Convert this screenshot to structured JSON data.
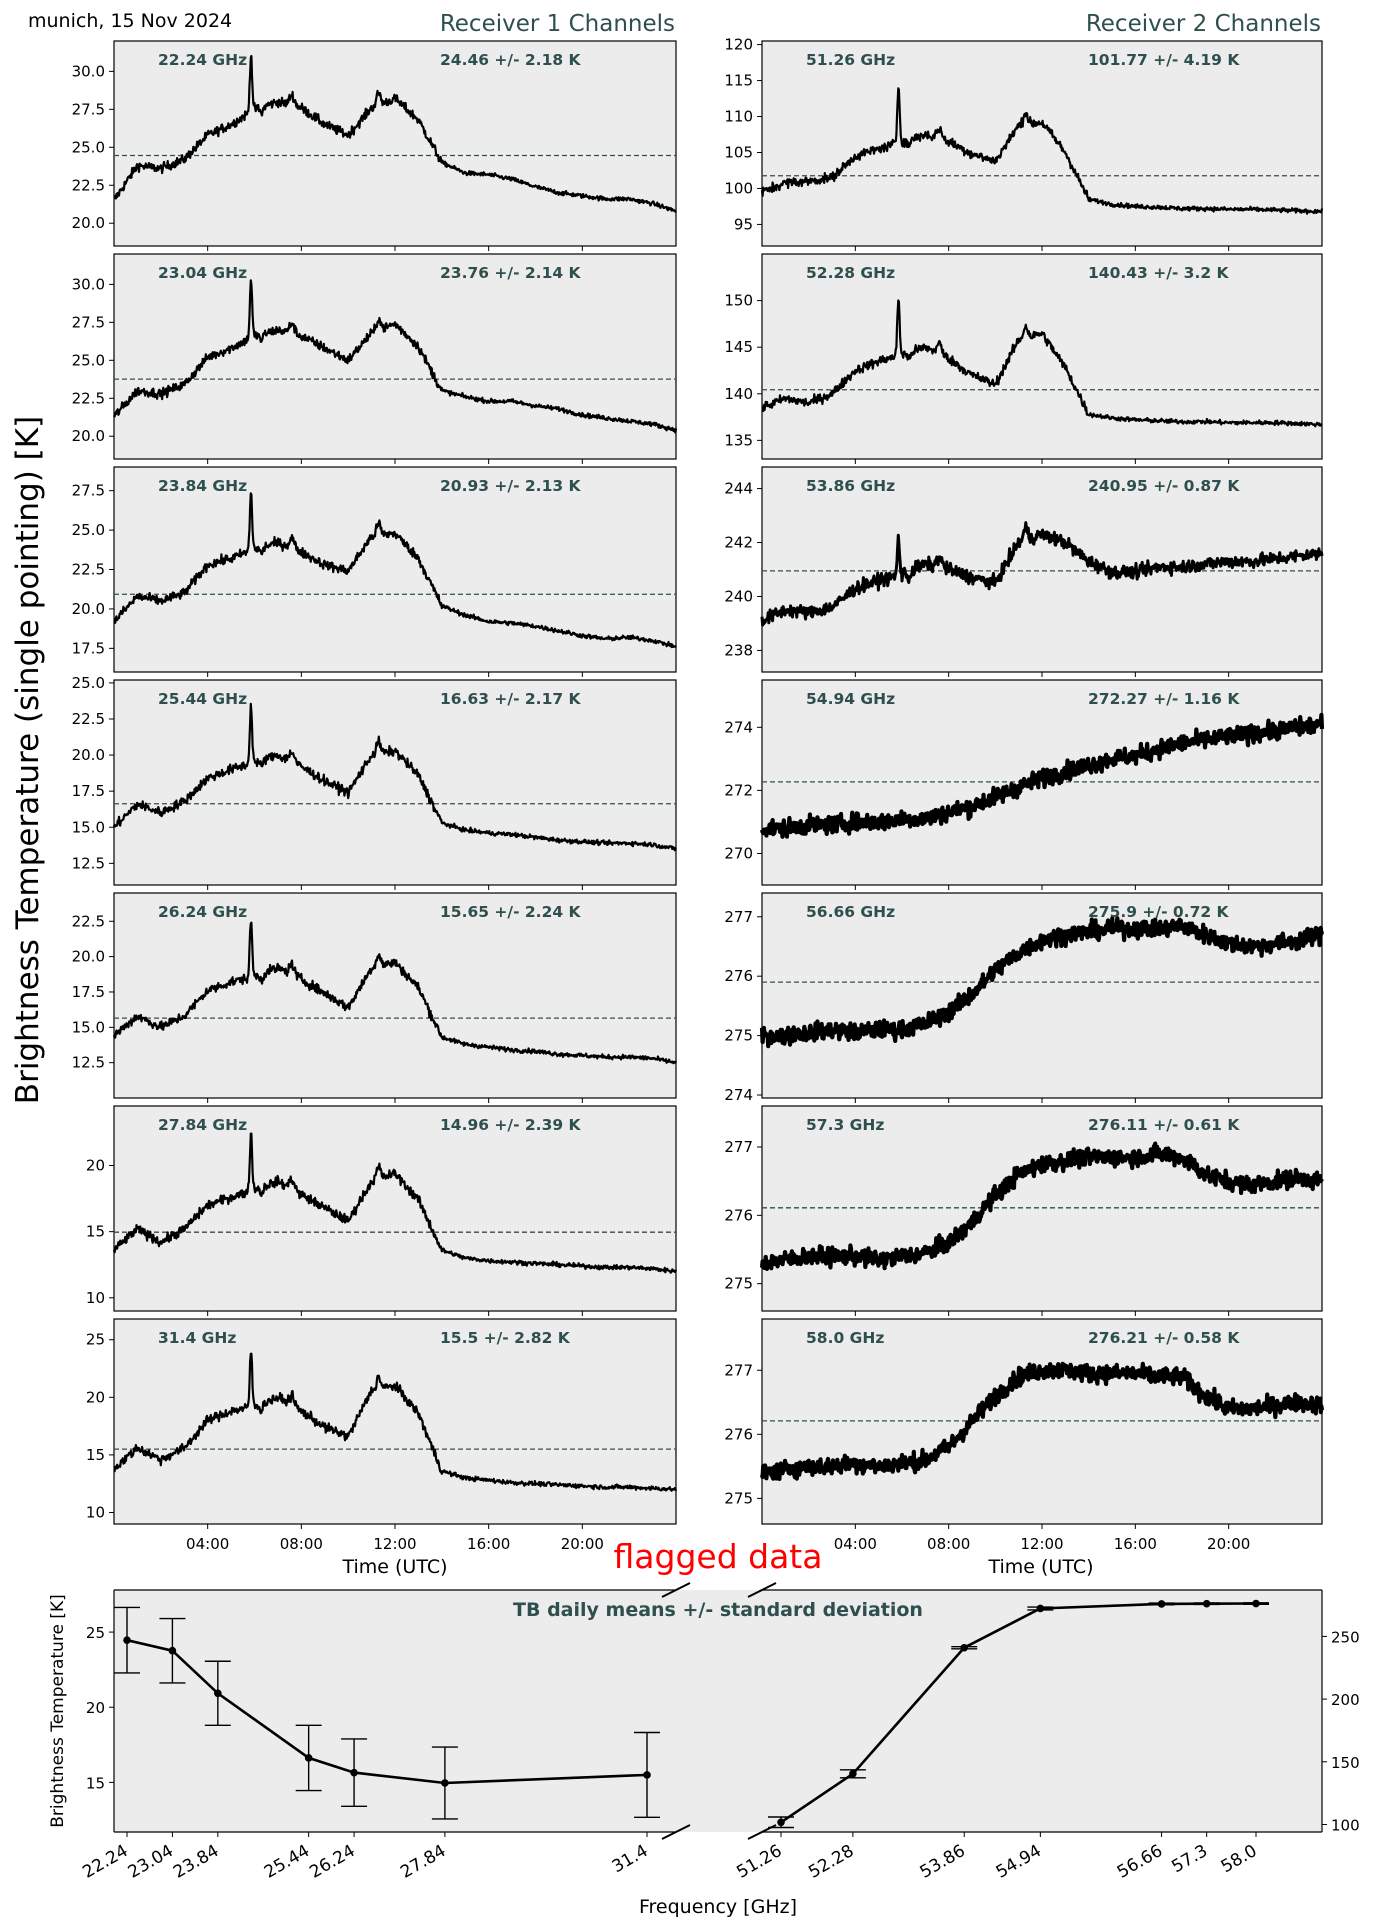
{
  "header": {
    "location_date": "munich, 15 Nov 2024",
    "receiver1_title": "Receiver 1 Channels",
    "receiver2_title": "Receiver 2 Channels"
  },
  "y_axis_label": "Brightness Temperature (single pointing) [K]",
  "x_axis_label": "Time (UTC)",
  "x_ticks": [
    "04:00",
    "08:00",
    "12:00",
    "16:00",
    "20:00"
  ],
  "flag_text": "flagged data",
  "colors": {
    "panel_bg": "#ececec",
    "trace": "#000000",
    "annotation": "#2f4f4f",
    "flag": "#ff0000"
  },
  "chart_data": [
    {
      "type": "line",
      "panel": "receiver1-ch1",
      "freq_label": "22.24 GHz",
      "stats": "24.46 +/- 2.18 K",
      "mean": 24.46,
      "ylim": [
        18.5,
        32.0
      ],
      "yticks": [
        "20.0",
        "22.5",
        "25.0",
        "27.5",
        "30.0"
      ],
      "ytick_values": [
        20.0,
        22.5,
        25.0,
        27.5,
        30.0
      ],
      "shape": "humidity",
      "x": [
        0,
        1,
        2,
        3,
        4,
        5,
        6,
        7,
        8,
        9,
        10,
        11,
        12,
        13,
        14,
        15,
        16,
        17,
        18,
        19,
        20,
        21,
        22,
        23,
        24
      ],
      "values": [
        21.5,
        23.8,
        23.6,
        24.2,
        25.8,
        26.5,
        27.5,
        28.0,
        27.6,
        26.5,
        25.8,
        27.6,
        28.2,
        26.8,
        24.0,
        23.3,
        23.2,
        22.9,
        22.4,
        22.0,
        21.8,
        21.6,
        21.6,
        21.3,
        20.8
      ]
    },
    {
      "type": "line",
      "panel": "receiver1-ch2",
      "freq_label": "23.04 GHz",
      "stats": "23.76 +/- 2.14 K",
      "mean": 23.76,
      "ylim": [
        18.5,
        32.0
      ],
      "yticks": [
        "20.0",
        "22.5",
        "25.0",
        "27.5",
        "30.0"
      ],
      "ytick_values": [
        20.0,
        22.5,
        25.0,
        27.5,
        30.0
      ],
      "shape": "humidity",
      "x": [
        0,
        1,
        2,
        3,
        4,
        5,
        6,
        7,
        8,
        9,
        10,
        11,
        12,
        13,
        14,
        15,
        16,
        17,
        18,
        19,
        20,
        21,
        22,
        23,
        24
      ],
      "values": [
        21.3,
        23.0,
        22.8,
        23.4,
        25.2,
        25.8,
        26.6,
        27.0,
        26.6,
        25.8,
        25.0,
        26.8,
        27.4,
        25.9,
        23.0,
        22.6,
        22.3,
        22.3,
        22.0,
        21.8,
        21.4,
        21.2,
        21.0,
        20.8,
        20.4
      ]
    },
    {
      "type": "line",
      "panel": "receiver1-ch3",
      "freq_label": "23.84 GHz",
      "stats": "20.93 +/- 2.13 K",
      "mean": 20.93,
      "ylim": [
        16.0,
        29.0
      ],
      "yticks": [
        "17.5",
        "20.0",
        "22.5",
        "25.0",
        "27.5"
      ],
      "ytick_values": [
        17.5,
        20.0,
        22.5,
        25.0,
        27.5
      ],
      "shape": "humidity",
      "x": [
        0,
        1,
        2,
        3,
        4,
        5,
        6,
        7,
        8,
        9,
        10,
        11,
        12,
        13,
        14,
        15,
        16,
        17,
        18,
        19,
        20,
        21,
        22,
        23,
        24
      ],
      "values": [
        19.2,
        20.8,
        20.5,
        21.0,
        22.8,
        23.2,
        23.8,
        24.2,
        23.6,
        22.8,
        22.4,
        24.6,
        24.8,
        23.2,
        20.2,
        19.6,
        19.2,
        19.1,
        18.9,
        18.6,
        18.3,
        18.1,
        18.2,
        18.0,
        17.6
      ]
    },
    {
      "type": "line",
      "panel": "receiver1-ch4",
      "freq_label": "25.44 GHz",
      "stats": "16.63 +/- 2.17 K",
      "mean": 16.63,
      "ylim": [
        11.0,
        25.2
      ],
      "yticks": [
        "12.5",
        "15.0",
        "17.5",
        "20.0",
        "22.5",
        "25.0"
      ],
      "ytick_values": [
        12.5,
        15.0,
        17.5,
        20.0,
        22.5,
        25.0
      ],
      "shape": "humidity",
      "x": [
        0,
        1,
        2,
        3,
        4,
        5,
        6,
        7,
        8,
        9,
        10,
        11,
        12,
        13,
        14,
        15,
        16,
        17,
        18,
        19,
        20,
        21,
        22,
        23,
        24
      ],
      "values": [
        15.0,
        16.6,
        16.0,
        16.8,
        18.4,
        19.0,
        19.5,
        20.0,
        19.2,
        18.2,
        17.4,
        20.0,
        20.3,
        18.6,
        15.3,
        14.8,
        14.6,
        14.5,
        14.3,
        14.1,
        14.0,
        13.9,
        13.9,
        13.8,
        13.5
      ]
    },
    {
      "type": "line",
      "panel": "receiver1-ch5",
      "freq_label": "26.24 GHz",
      "stats": "15.65 +/- 2.24 K",
      "mean": 15.65,
      "ylim": [
        10.0,
        24.5
      ],
      "yticks": [
        "12.5",
        "15.0",
        "17.5",
        "20.0",
        "22.5"
      ],
      "ytick_values": [
        12.5,
        15.0,
        17.5,
        20.0,
        22.5
      ],
      "shape": "humidity",
      "x": [
        0,
        1,
        2,
        3,
        4,
        5,
        6,
        7,
        8,
        9,
        10,
        11,
        12,
        13,
        14,
        15,
        16,
        17,
        18,
        19,
        20,
        21,
        22,
        23,
        24
      ],
      "values": [
        14.4,
        15.8,
        15.0,
        15.8,
        17.6,
        18.2,
        18.6,
        19.2,
        18.4,
        17.4,
        16.4,
        19.2,
        19.6,
        17.8,
        14.3,
        13.8,
        13.6,
        13.4,
        13.3,
        13.1,
        13.0,
        12.9,
        12.9,
        12.8,
        12.5
      ]
    },
    {
      "type": "line",
      "panel": "receiver1-ch6",
      "freq_label": "27.84 GHz",
      "stats": "14.96 +/- 2.39 K",
      "mean": 14.96,
      "ylim": [
        9.0,
        24.5
      ],
      "yticks": [
        "10",
        "15",
        "20"
      ],
      "ytick_values": [
        10,
        15,
        20
      ],
      "shape": "humidity",
      "x": [
        0,
        1,
        2,
        3,
        4,
        5,
        6,
        7,
        8,
        9,
        10,
        11,
        12,
        13,
        14,
        15,
        16,
        17,
        18,
        19,
        20,
        21,
        22,
        23,
        24
      ],
      "values": [
        13.6,
        15.2,
        14.2,
        15.2,
        17.0,
        17.6,
        18.2,
        18.8,
        17.8,
        16.8,
        15.8,
        18.8,
        19.4,
        17.4,
        13.6,
        13.0,
        12.8,
        12.7,
        12.6,
        12.5,
        12.4,
        12.3,
        12.3,
        12.2,
        12.0
      ]
    },
    {
      "type": "line",
      "panel": "receiver1-ch7",
      "freq_label": "31.4 GHz",
      "stats": "15.5 +/- 2.82 K",
      "mean": 15.5,
      "ylim": [
        9.0,
        26.8
      ],
      "yticks": [
        "10",
        "15",
        "20",
        "25"
      ],
      "ytick_values": [
        10,
        15,
        20,
        25
      ],
      "shape": "humidity",
      "x": [
        0,
        1,
        2,
        3,
        4,
        5,
        6,
        7,
        8,
        9,
        10,
        11,
        12,
        13,
        14,
        15,
        16,
        17,
        18,
        19,
        20,
        21,
        22,
        23,
        24
      ],
      "values": [
        13.8,
        15.6,
        14.6,
        15.6,
        18.0,
        18.8,
        19.2,
        20.0,
        18.8,
        17.4,
        16.6,
        20.6,
        21.0,
        18.6,
        13.6,
        13.0,
        12.8,
        12.6,
        12.5,
        12.4,
        12.3,
        12.2,
        12.2,
        12.1,
        12.0
      ]
    },
    {
      "type": "line",
      "panel": "receiver2-ch1",
      "freq_label": "51.26 GHz",
      "stats": "101.77 +/- 4.19 K",
      "mean": 101.77,
      "ylim": [
        92.0,
        120.5
      ],
      "yticks": [
        "95",
        "100",
        "105",
        "110",
        "115",
        "120"
      ],
      "ytick_values": [
        95,
        100,
        105,
        110,
        115,
        120
      ],
      "shape": "humidity",
      "x": [
        0,
        1,
        2,
        3,
        4,
        5,
        6,
        7,
        8,
        9,
        10,
        11,
        12,
        13,
        14,
        15,
        16,
        17,
        18,
        19,
        20,
        21,
        22,
        23,
        24
      ],
      "values": [
        99.5,
        100.8,
        101.0,
        101.5,
        104.5,
        105.5,
        106.5,
        107.5,
        106.5,
        104.8,
        103.8,
        108.8,
        109.2,
        105.0,
        98.5,
        97.8,
        97.5,
        97.4,
        97.2,
        97.2,
        97.1,
        97.1,
        97.0,
        96.9,
        96.8
      ]
    },
    {
      "type": "line",
      "panel": "receiver2-ch2",
      "freq_label": "52.28 GHz",
      "stats": "140.43 +/- 3.2 K",
      "mean": 140.43,
      "ylim": [
        133.0,
        155.0
      ],
      "yticks": [
        "135",
        "140",
        "145",
        "150"
      ],
      "ytick_values": [
        135,
        140,
        145,
        150
      ],
      "shape": "humidity",
      "x": [
        0,
        1,
        2,
        3,
        4,
        5,
        6,
        7,
        8,
        9,
        10,
        11,
        12,
        13,
        14,
        15,
        16,
        17,
        18,
        19,
        20,
        21,
        22,
        23,
        24
      ],
      "values": [
        138.5,
        139.5,
        139.0,
        140.0,
        142.5,
        143.5,
        144.2,
        145.0,
        143.8,
        142.0,
        141.0,
        145.8,
        146.5,
        142.8,
        137.8,
        137.4,
        137.2,
        137.1,
        137.0,
        137.0,
        136.9,
        136.9,
        136.9,
        136.8,
        136.7
      ]
    },
    {
      "type": "line",
      "panel": "receiver2-ch3",
      "freq_label": "53.86 GHz",
      "stats": "240.95 +/- 0.87 K",
      "mean": 240.95,
      "ylim": [
        237.2,
        244.8
      ],
      "yticks": [
        "238",
        "240",
        "242",
        "244"
      ],
      "ytick_values": [
        238,
        240,
        242,
        244
      ],
      "shape": "mixed",
      "x": [
        0,
        1,
        2,
        3,
        4,
        5,
        6,
        7,
        8,
        9,
        10,
        11,
        12,
        13,
        14,
        15,
        16,
        17,
        18,
        19,
        20,
        21,
        22,
        23,
        24
      ],
      "values": [
        239.1,
        239.5,
        239.4,
        239.6,
        240.3,
        240.6,
        240.8,
        241.2,
        241.0,
        240.7,
        240.5,
        242.0,
        242.3,
        242.0,
        241.3,
        240.9,
        240.9,
        241.1,
        241.1,
        241.2,
        241.3,
        241.3,
        241.4,
        241.5,
        241.6
      ]
    },
    {
      "type": "line",
      "panel": "receiver2-ch4",
      "freq_label": "54.94 GHz",
      "stats": "272.27 +/- 1.16 K",
      "mean": 272.27,
      "ylim": [
        269.0,
        275.5
      ],
      "yticks": [
        "270",
        "272",
        "274"
      ],
      "ytick_values": [
        270,
        272,
        274
      ],
      "shape": "smooth",
      "x": [
        0,
        1,
        2,
        3,
        4,
        5,
        6,
        7,
        8,
        9,
        10,
        11,
        12,
        13,
        14,
        15,
        16,
        17,
        18,
        19,
        20,
        21,
        22,
        23,
        24
      ],
      "values": [
        270.8,
        270.8,
        270.9,
        270.9,
        271.0,
        271.0,
        271.1,
        271.1,
        271.3,
        271.5,
        271.8,
        272.1,
        272.4,
        272.6,
        272.8,
        273.0,
        273.1,
        273.3,
        273.5,
        273.6,
        273.7,
        273.8,
        273.9,
        274.0,
        274.1
      ]
    },
    {
      "type": "line",
      "panel": "receiver2-ch5",
      "freq_label": "56.66 GHz",
      "stats": "275.9 +/- 0.72 K",
      "mean": 275.9,
      "ylim": [
        273.95,
        277.4
      ],
      "yticks": [
        "274",
        "275",
        "276",
        "277"
      ],
      "ytick_values": [
        274,
        275,
        276,
        277
      ],
      "shape": "smooth",
      "x": [
        0,
        1,
        2,
        3,
        4,
        5,
        6,
        7,
        8,
        9,
        10,
        11,
        12,
        13,
        14,
        15,
        16,
        17,
        18,
        19,
        20,
        21,
        22,
        23,
        24
      ],
      "values": [
        275.0,
        275.0,
        275.05,
        275.1,
        275.05,
        275.1,
        275.1,
        275.2,
        275.4,
        275.7,
        276.1,
        276.4,
        276.6,
        276.7,
        276.75,
        276.8,
        276.8,
        276.8,
        276.85,
        276.7,
        276.55,
        276.5,
        276.55,
        276.6,
        276.7
      ]
    },
    {
      "type": "line",
      "panel": "receiver2-ch6",
      "freq_label": "57.3 GHz",
      "stats": "276.11 +/- 0.61 K",
      "mean": 276.11,
      "ylim": [
        274.6,
        277.6
      ],
      "yticks": [
        "275",
        "276",
        "277"
      ],
      "ytick_values": [
        275,
        276,
        277
      ],
      "shape": "smooth",
      "x": [
        0,
        1,
        2,
        3,
        4,
        5,
        6,
        7,
        8,
        9,
        10,
        11,
        12,
        13,
        14,
        15,
        16,
        17,
        18,
        19,
        20,
        21,
        22,
        23,
        24
      ],
      "values": [
        275.3,
        275.35,
        275.4,
        275.4,
        275.4,
        275.35,
        275.4,
        275.45,
        275.6,
        275.9,
        276.3,
        276.6,
        276.75,
        276.8,
        276.85,
        276.85,
        276.85,
        276.9,
        276.85,
        276.6,
        276.5,
        276.45,
        276.5,
        276.55,
        276.5
      ]
    },
    {
      "type": "line",
      "panel": "receiver2-ch7",
      "freq_label": "58.0 GHz",
      "stats": "276.21 +/- 0.58 K",
      "mean": 276.21,
      "ylim": [
        274.6,
        277.8
      ],
      "yticks": [
        "275",
        "276",
        "277"
      ],
      "ytick_values": [
        275,
        276,
        277
      ],
      "shape": "smooth",
      "x": [
        0,
        1,
        2,
        3,
        4,
        5,
        6,
        7,
        8,
        9,
        10,
        11,
        12,
        13,
        14,
        15,
        16,
        17,
        18,
        19,
        20,
        21,
        22,
        23,
        24
      ],
      "values": [
        275.4,
        275.45,
        275.5,
        275.5,
        275.55,
        275.5,
        275.55,
        275.6,
        275.8,
        276.2,
        276.6,
        276.9,
        277.0,
        277.0,
        276.95,
        276.95,
        276.95,
        276.9,
        276.9,
        276.6,
        276.4,
        276.4,
        276.45,
        276.5,
        276.45
      ]
    },
    {
      "type": "line",
      "panel": "daily-means",
      "title": "TB daily means +/- standard deviation",
      "xlabel": "Frequency [GHz]",
      "ylabel": "Brightness Temperature [K]",
      "left": {
        "categories": [
          "22.24",
          "23.04",
          "23.84",
          "25.44",
          "26.24",
          "27.84",
          "31.4"
        ],
        "freq": [
          22.24,
          23.04,
          23.84,
          25.44,
          26.24,
          27.84,
          31.4
        ],
        "values": [
          24.46,
          23.76,
          20.93,
          16.63,
          15.65,
          14.96,
          15.5
        ],
        "errors": [
          2.18,
          2.14,
          2.13,
          2.17,
          2.24,
          2.39,
          2.82
        ],
        "ylim": [
          11.7,
          27.8
        ],
        "yticks": [
          "15",
          "20",
          "25"
        ],
        "ytick_values": [
          15,
          20,
          25
        ]
      },
      "right": {
        "categories": [
          "51.26",
          "52.28",
          "53.86",
          "54.94",
          "56.66",
          "57.3",
          "58.0"
        ],
        "freq": [
          51.26,
          52.28,
          53.86,
          54.94,
          56.66,
          57.3,
          58.0
        ],
        "values": [
          101.77,
          140.43,
          240.95,
          272.27,
          275.9,
          276.11,
          276.21
        ],
        "errors": [
          4.19,
          3.2,
          0.87,
          1.16,
          0.72,
          0.61,
          0.58
        ],
        "ylim": [
          94.0,
          287.0
        ],
        "yticks": [
          "100",
          "150",
          "200",
          "250"
        ],
        "ytick_values": [
          100,
          150,
          200,
          250
        ]
      }
    }
  ]
}
